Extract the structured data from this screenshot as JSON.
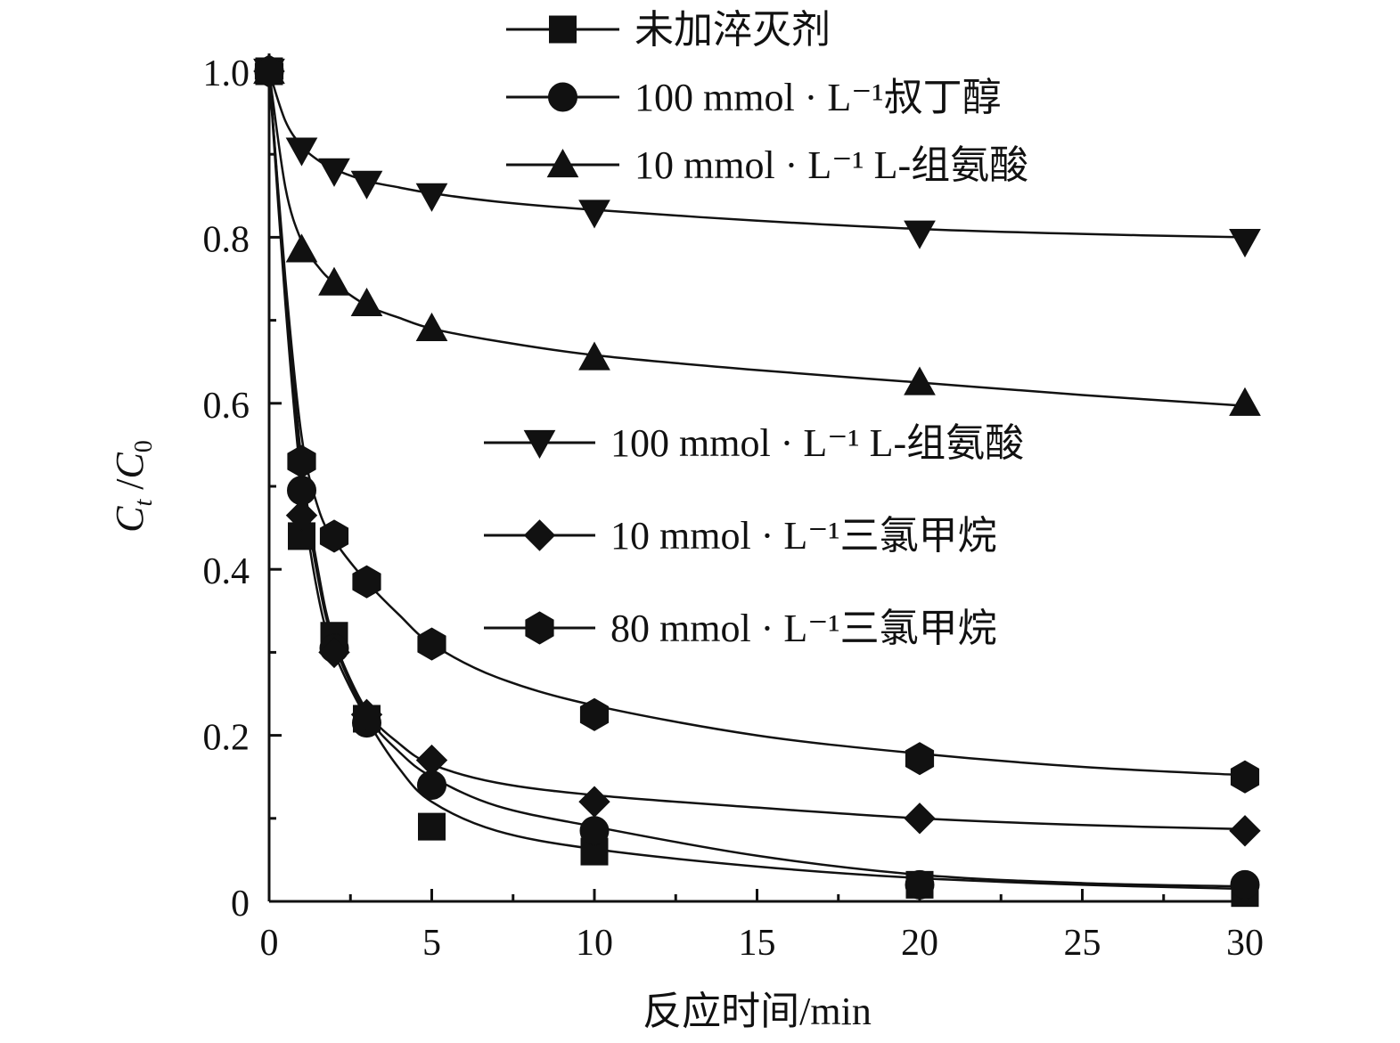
{
  "chart_data": {
    "type": "scatter",
    "xlabel": "反应时间/min",
    "ylabel_main": "C",
    "ylabel_sub": "t",
    "ylabel_sep": " /",
    "ylabel_main2": "C",
    "ylabel_sub2": "0",
    "xlim": [
      0,
      30
    ],
    "ylim": [
      0,
      1.0
    ],
    "x_ticks": [
      0,
      5,
      10,
      15,
      20,
      25,
      30
    ],
    "x_tick_labels": [
      "0",
      "5",
      "10",
      "15",
      "20",
      "25",
      "30"
    ],
    "y_ticks": [
      0,
      0.2,
      0.4,
      0.6,
      0.8,
      1.0
    ],
    "y_tick_labels": [
      "0",
      "0.2",
      "0.4",
      "0.6",
      "0.8",
      "1.0"
    ],
    "grid": false,
    "legend_upper": {
      "placement": "top-center",
      "entries": [
        {
          "series_index": 0,
          "text": "未加淬灭剂"
        },
        {
          "series_index": 1,
          "text": "100 mmol · L⁻¹叔丁醇"
        },
        {
          "series_index": 2,
          "text": "10 mmol · L⁻¹ L-组氨酸"
        }
      ]
    },
    "legend_lower": {
      "placement": "center-right",
      "entries": [
        {
          "series_index": 3,
          "text": "100 mmol · L⁻¹ L-组氨酸"
        },
        {
          "series_index": 4,
          "text": "10 mmol · L⁻¹三氯甲烷"
        },
        {
          "series_index": 5,
          "text": "80 mmol · L⁻¹三氯甲烷"
        }
      ]
    },
    "series": [
      {
        "name": "未加淬灭剂",
        "marker": "square",
        "x": [
          0,
          1,
          2,
          3,
          5,
          10,
          20,
          30
        ],
        "y": [
          1.0,
          0.44,
          0.32,
          0.22,
          0.09,
          0.06,
          0.02,
          0.01
        ],
        "fit": [
          [
            0,
            1.0
          ],
          [
            0.5,
            0.72
          ],
          [
            1,
            0.5
          ],
          [
            1.5,
            0.37
          ],
          [
            2,
            0.3
          ],
          [
            3,
            0.22
          ],
          [
            4,
            0.16
          ],
          [
            5,
            0.12
          ],
          [
            7,
            0.085
          ],
          [
            10,
            0.063
          ],
          [
            15,
            0.042
          ],
          [
            20,
            0.028
          ],
          [
            25,
            0.02
          ],
          [
            30,
            0.015
          ]
        ]
      },
      {
        "name": "100 mmol · L⁻¹叔丁醇",
        "marker": "circle",
        "x": [
          0,
          1,
          2,
          3,
          5,
          10,
          20,
          30
        ],
        "y": [
          1.0,
          0.495,
          0.305,
          0.215,
          0.14,
          0.085,
          0.02,
          0.02
        ],
        "fit": [
          [
            0,
            1.0
          ],
          [
            0.5,
            0.74
          ],
          [
            1,
            0.52
          ],
          [
            1.5,
            0.39
          ],
          [
            2,
            0.31
          ],
          [
            3,
            0.225
          ],
          [
            4,
            0.18
          ],
          [
            5,
            0.15
          ],
          [
            7,
            0.115
          ],
          [
            10,
            0.09
          ],
          [
            15,
            0.055
          ],
          [
            20,
            0.032
          ],
          [
            25,
            0.022
          ],
          [
            30,
            0.018
          ]
        ]
      },
      {
        "name": "10 mmol · L⁻¹ L-组氨酸",
        "marker": "triangle-up",
        "x": [
          0,
          1,
          2,
          3,
          5,
          10,
          20,
          30
        ],
        "y": [
          1.0,
          0.785,
          0.745,
          0.72,
          0.69,
          0.655,
          0.625,
          0.6
        ],
        "fit": [
          [
            0,
            1.0
          ],
          [
            0.5,
            0.86
          ],
          [
            1,
            0.795
          ],
          [
            1.5,
            0.765
          ],
          [
            2,
            0.745
          ],
          [
            3,
            0.718
          ],
          [
            4,
            0.703
          ],
          [
            5,
            0.69
          ],
          [
            7,
            0.675
          ],
          [
            10,
            0.658
          ],
          [
            15,
            0.64
          ],
          [
            20,
            0.625
          ],
          [
            25,
            0.61
          ],
          [
            30,
            0.597
          ]
        ]
      },
      {
        "name": "100 mmol · L⁻¹ L-组氨酸",
        "marker": "triangle-down",
        "x": [
          0,
          1,
          2,
          3,
          5,
          10,
          20,
          30
        ],
        "y": [
          1.0,
          0.905,
          0.88,
          0.865,
          0.85,
          0.83,
          0.805,
          0.795
        ],
        "fit": [
          [
            0,
            1.0
          ],
          [
            0.5,
            0.94
          ],
          [
            1,
            0.91
          ],
          [
            1.5,
            0.893
          ],
          [
            2,
            0.882
          ],
          [
            3,
            0.868
          ],
          [
            4,
            0.86
          ],
          [
            5,
            0.853
          ],
          [
            7,
            0.843
          ],
          [
            10,
            0.833
          ],
          [
            15,
            0.82
          ],
          [
            20,
            0.81
          ],
          [
            25,
            0.804
          ],
          [
            30,
            0.8
          ]
        ]
      },
      {
        "name": "10 mmol · L⁻¹三氯甲烷",
        "marker": "diamond",
        "x": [
          0,
          1,
          2,
          3,
          5,
          10,
          20,
          30
        ],
        "y": [
          1.0,
          0.465,
          0.3,
          0.225,
          0.17,
          0.12,
          0.1,
          0.085
        ],
        "fit": [
          [
            0,
            1.0
          ],
          [
            0.5,
            0.74
          ],
          [
            1,
            0.53
          ],
          [
            1.5,
            0.4
          ],
          [
            2,
            0.315
          ],
          [
            3,
            0.23
          ],
          [
            4,
            0.19
          ],
          [
            5,
            0.165
          ],
          [
            7,
            0.143
          ],
          [
            10,
            0.128
          ],
          [
            15,
            0.113
          ],
          [
            20,
            0.1
          ],
          [
            25,
            0.092
          ],
          [
            30,
            0.087
          ]
        ]
      },
      {
        "name": "80 mmol · L⁻¹三氯甲烷",
        "marker": "hexagon",
        "x": [
          0,
          1,
          2,
          3,
          5,
          10,
          20,
          30
        ],
        "y": [
          1.0,
          0.53,
          0.44,
          0.385,
          0.31,
          0.225,
          0.172,
          0.15
        ],
        "fit": [
          [
            0,
            1.0
          ],
          [
            0.5,
            0.75
          ],
          [
            1,
            0.56
          ],
          [
            1.5,
            0.475
          ],
          [
            2,
            0.435
          ],
          [
            3,
            0.385
          ],
          [
            4,
            0.345
          ],
          [
            5,
            0.31
          ],
          [
            7,
            0.27
          ],
          [
            10,
            0.236
          ],
          [
            15,
            0.2
          ],
          [
            20,
            0.178
          ],
          [
            25,
            0.162
          ],
          [
            30,
            0.152
          ]
        ]
      }
    ]
  }
}
